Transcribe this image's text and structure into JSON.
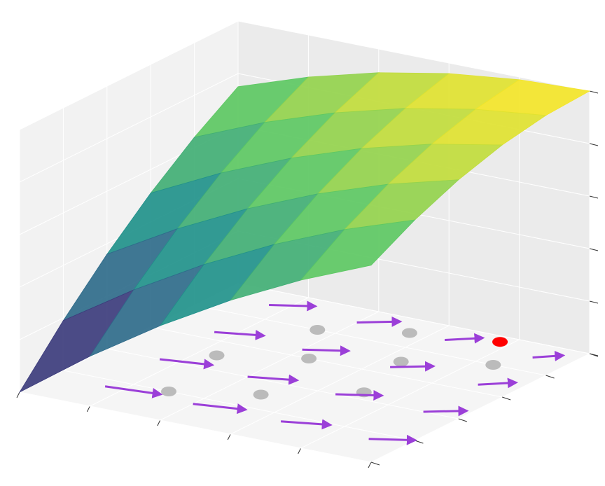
{
  "chart_data": {
    "type": "surface3d",
    "xlim": [
      0,
      1
    ],
    "ylim": [
      0,
      1
    ],
    "zlim": [
      0,
      1
    ],
    "xticks": [
      0,
      0.2,
      0.4,
      0.6,
      0.8,
      1
    ],
    "yticks": [
      0,
      0.2,
      0.4,
      0.6,
      0.8,
      1
    ],
    "zticks": [
      0,
      0.2,
      0.4,
      0.6,
      0.8,
      1
    ],
    "grid": true,
    "colormap": [
      "#440154",
      "#3b528b",
      "#21918c",
      "#5ec962",
      "#fde725"
    ],
    "x": [
      0,
      0.2,
      0.4,
      0.6,
      0.8,
      1
    ],
    "y": [
      0,
      0.2,
      0.4,
      0.6,
      0.8,
      1
    ],
    "z": [
      [
        0,
        0.19,
        0.36,
        0.51,
        0.64,
        0.75
      ],
      [
        0.19,
        0.36,
        0.51,
        0.64,
        0.75,
        0.84
      ],
      [
        0.36,
        0.51,
        0.64,
        0.75,
        0.84,
        0.91
      ],
      [
        0.51,
        0.64,
        0.75,
        0.84,
        0.91,
        0.96
      ],
      [
        0.64,
        0.75,
        0.84,
        0.91,
        0.96,
        0.99
      ],
      [
        0.75,
        0.84,
        0.91,
        0.96,
        0.99,
        1
      ]
    ],
    "quiver": {
      "color": "#9b3fd8",
      "x": [
        0.15,
        0.15,
        0.15,
        0.15,
        0.4,
        0.4,
        0.4,
        0.4,
        0.65,
        0.65,
        0.65,
        0.65,
        0.9,
        0.9,
        0.9,
        0.9
      ],
      "y": [
        0.15,
        0.4,
        0.65,
        0.9,
        0.15,
        0.4,
        0.65,
        0.9,
        0.15,
        0.4,
        0.65,
        0.9,
        0.15,
        0.4,
        0.65,
        0.9
      ],
      "u": [
        0.14,
        0.125,
        0.11,
        0.095,
        0.125,
        0.11,
        0.095,
        0.08,
        0.11,
        0.095,
        0.08,
        0.065,
        0.095,
        0.08,
        0.065,
        0.05
      ],
      "v": [
        0.02,
        0.03,
        0.04,
        0.05,
        0.03,
        0.04,
        0.05,
        0.06,
        0.04,
        0.05,
        0.06,
        0.06,
        0.05,
        0.06,
        0.06,
        0.05
      ]
    },
    "points": {
      "color": "#bbbbbb",
      "x": [
        0.3,
        0.5,
        0.7,
        0.25,
        0.45,
        0.65,
        0.85,
        0.55,
        0.35
      ],
      "y": [
        0.2,
        0.3,
        0.45,
        0.5,
        0.6,
        0.7,
        0.8,
        0.9,
        0.8
      ]
    },
    "highlight": {
      "color": "#ff0000",
      "x": 0.77,
      "y": 0.96
    }
  }
}
